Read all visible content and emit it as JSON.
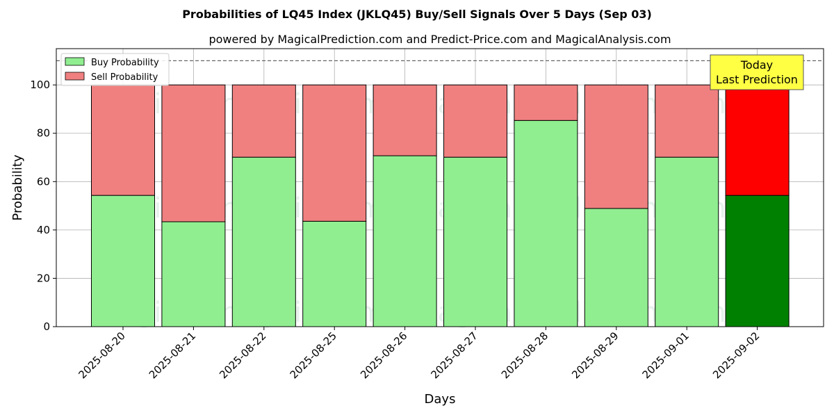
{
  "chart_data": {
    "type": "bar",
    "stacked": true,
    "title": "Probabilities of LQ45 Index (JKLQ45) Buy/Sell Signals Over 5 Days (Sep 03)",
    "subtitle": "powered by MagicalPrediction.com and Predict-Price.com and MagicalAnalysis.com",
    "xlabel": "Days",
    "ylabel": "Probability",
    "ylim": [
      0,
      115
    ],
    "yticks": [
      0,
      20,
      40,
      60,
      80,
      100
    ],
    "grid": true,
    "reference_line": 110,
    "categories": [
      "2025-08-20",
      "2025-08-21",
      "2025-08-22",
      "2025-08-25",
      "2025-08-26",
      "2025-08-27",
      "2025-08-28",
      "2025-08-29",
      "2025-09-01",
      "2025-09-02"
    ],
    "series": [
      {
        "name": "Buy Probability",
        "values": [
          54.3,
          43.4,
          70.1,
          43.6,
          70.7,
          70.1,
          85.3,
          48.9,
          70.1,
          54.3
        ]
      },
      {
        "name": "Sell Probability",
        "values": [
          45.7,
          56.6,
          29.9,
          56.4,
          29.3,
          29.9,
          14.7,
          51.1,
          29.9,
          45.7
        ]
      }
    ],
    "colors": {
      "buy": "#90ee90",
      "sell": "#f08080",
      "buy_highlight": "#008000",
      "sell_highlight": "#ff0000",
      "annotation_bg": "#ffff44"
    },
    "highlight_index": 9,
    "legend_position": "top-left",
    "annotation": {
      "line1": "Today",
      "line2": "Last Prediction"
    },
    "watermarks": [
      "MagicalAnalysis.com",
      "MagicalPrediction.com",
      "MagicalAnalysis.com",
      "MagicalPrediction.com",
      "MagicalAnalysis.com",
      "MagicalPrediction.com"
    ]
  }
}
